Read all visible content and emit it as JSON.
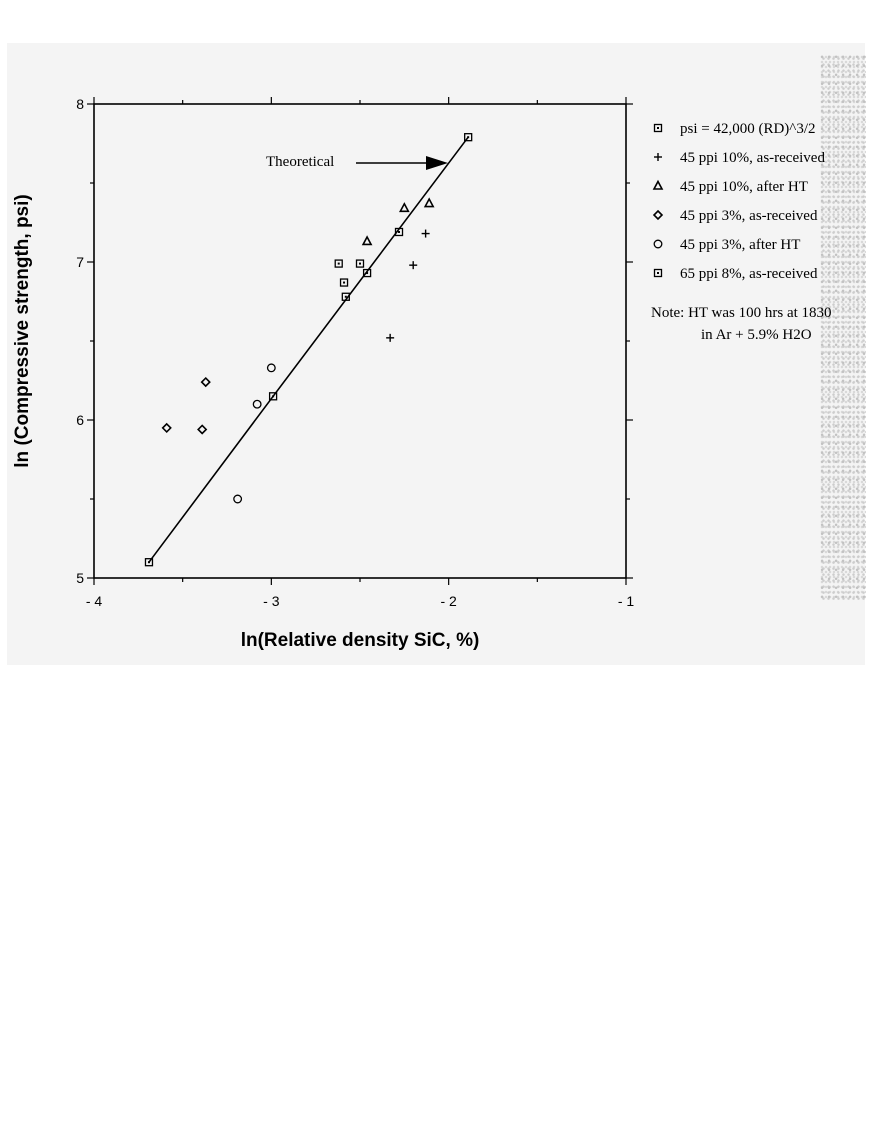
{
  "chart_data": {
    "type": "scatter",
    "xlabel": "ln(Relative density SiC, %)",
    "ylabel": "ln (Compressive strength, psi)",
    "xlim": [
      -4,
      -1
    ],
    "ylim": [
      5,
      8
    ],
    "x_ticks": [
      {
        "value": -4,
        "label": "- 4"
      },
      {
        "value": -3,
        "label": "- 3"
      },
      {
        "value": -2,
        "label": "- 2"
      },
      {
        "value": -1,
        "label": "- 1"
      }
    ],
    "y_ticks": [
      {
        "value": 5,
        "label": "5"
      },
      {
        "value": 6,
        "label": "6"
      },
      {
        "value": 7,
        "label": "7"
      },
      {
        "value": 8,
        "label": "8"
      }
    ],
    "grid": false,
    "legend_position": "right",
    "series": [
      {
        "name": "psi = 42,000 (RD)^3/2",
        "marker": "square-line",
        "kind": "line",
        "points": [
          [
            -3.69,
            5.1
          ],
          [
            -2.99,
            6.15
          ],
          [
            -1.89,
            7.79
          ]
        ]
      },
      {
        "name": "45 ppi 10%, as-received",
        "marker": "plus",
        "points": [
          [
            -2.13,
            7.18
          ],
          [
            -2.2,
            6.98
          ],
          [
            -2.33,
            6.52
          ]
        ]
      },
      {
        "name": "45 ppi 10%, after HT",
        "marker": "triangle",
        "points": [
          [
            -2.25,
            7.34
          ],
          [
            -2.11,
            7.37
          ],
          [
            -2.46,
            7.13
          ]
        ]
      },
      {
        "name": "45 ppi 3%, as-received",
        "marker": "diamond",
        "points": [
          [
            -3.59,
            5.95
          ],
          [
            -3.37,
            6.24
          ],
          [
            -3.39,
            5.94
          ]
        ]
      },
      {
        "name": "45 ppi 3%, after HT",
        "marker": "circle",
        "points": [
          [
            -3.0,
            6.33
          ],
          [
            -3.08,
            6.1
          ],
          [
            -3.19,
            5.5
          ]
        ]
      },
      {
        "name": "65 ppi 8%, as-received",
        "marker": "square",
        "points": [
          [
            -2.62,
            6.99
          ],
          [
            -2.5,
            6.99
          ],
          [
            -2.59,
            6.87
          ],
          [
            -2.46,
            6.93
          ],
          [
            -2.58,
            6.78
          ],
          [
            -2.28,
            7.19
          ]
        ]
      }
    ],
    "annotation": {
      "text": "Theoretical"
    },
    "note": {
      "line1": "Note:  HT was 100 hrs at 1830",
      "line2": "in Ar + 5.9% H2O"
    }
  }
}
